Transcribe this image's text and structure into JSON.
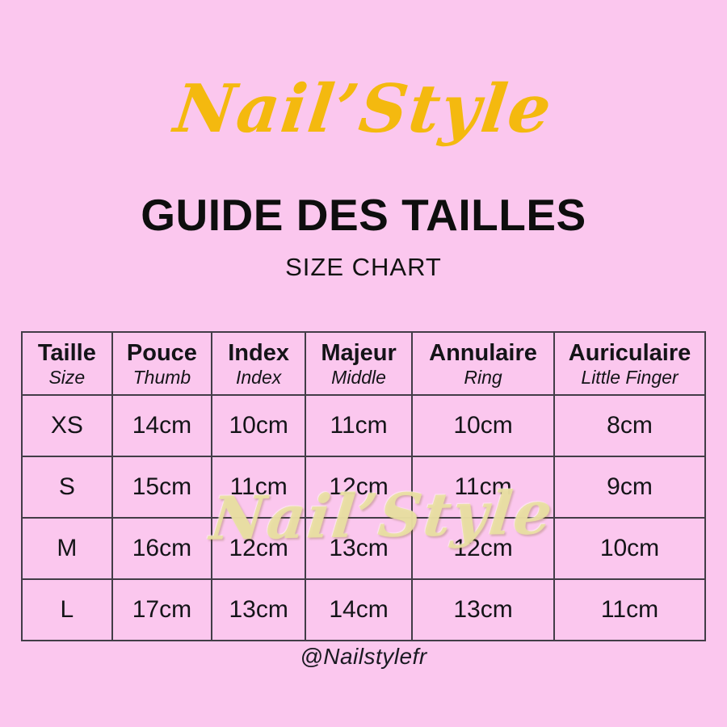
{
  "page": {
    "brand": "Nail’Style",
    "title": "GUIDE DES TAILLES",
    "subtitle": "SIZE CHART",
    "watermark": "Nail’Style",
    "footer_handle": "@Nailstylefr"
  },
  "colors": {
    "background_pink": "#fbc7ee",
    "brand_yellow": "#f4b90f",
    "table_border": "#423d47",
    "text_dark": "#141418",
    "watermark_cream": "#e9dfa2"
  },
  "table": {
    "header": [
      {
        "fr": "Taille",
        "en": "Size"
      },
      {
        "fr": "Pouce",
        "en": "Thumb"
      },
      {
        "fr": "Index",
        "en": "Index"
      },
      {
        "fr": "Majeur",
        "en": "Middle"
      },
      {
        "fr": "Annulaire",
        "en": "Ring"
      },
      {
        "fr": "Auriculaire",
        "en": "Little Finger"
      }
    ],
    "rows": [
      {
        "label": "XS",
        "values": [
          "14cm",
          "10cm",
          "11cm",
          "10cm",
          "8cm"
        ]
      },
      {
        "label": "S",
        "values": [
          "15cm",
          "11cm",
          "12cm",
          "11cm",
          "9cm"
        ]
      },
      {
        "label": "M",
        "values": [
          "16cm",
          "12cm",
          "13cm",
          "12cm",
          "10cm"
        ]
      },
      {
        "label": "L",
        "values": [
          "17cm",
          "13cm",
          "14cm",
          "13cm",
          "11cm"
        ]
      }
    ]
  },
  "chart_data": {
    "type": "table",
    "title": "GUIDE DES TAILLES",
    "subtitle": "SIZE CHART",
    "columns_fr": [
      "Taille",
      "Pouce",
      "Index",
      "Majeur",
      "Annulaire",
      "Auriculaire"
    ],
    "columns_en": [
      "Size",
      "Thumb",
      "Index",
      "Middle",
      "Ring",
      "Little Finger"
    ],
    "unit": "cm",
    "rows": [
      [
        "XS",
        "14cm",
        "10cm",
        "11cm",
        "10cm",
        "8cm"
      ],
      [
        "S",
        "15cm",
        "11cm",
        "12cm",
        "11cm",
        "9cm"
      ],
      [
        "M",
        "16cm",
        "12cm",
        "13cm",
        "12cm",
        "10cm"
      ],
      [
        "L",
        "17cm",
        "13cm",
        "14cm",
        "13cm",
        "11cm"
      ]
    ]
  }
}
